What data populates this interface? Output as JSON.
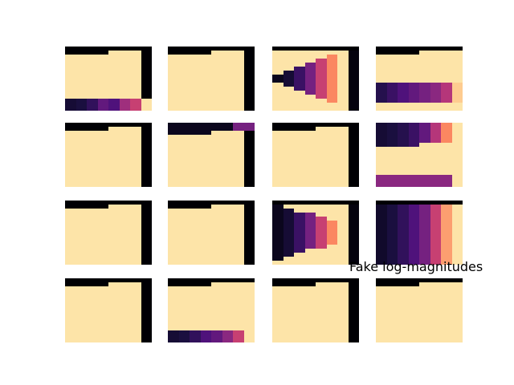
{
  "chart_data": {
    "type": "heatmap",
    "title": "",
    "annotation": "Fake log-magnitudes",
    "grid_rows": 4,
    "grid_cols": 4,
    "colormap": "magma",
    "value_range": [
      0,
      1
    ],
    "panels": [
      {
        "id": "r1c1",
        "pattern": "bottom-band",
        "cols": [
          0.95,
          0.95,
          0.95,
          0.95,
          0.95,
          0.95,
          0.95,
          0.0
        ],
        "band": [
          0.1,
          0.12,
          0.18,
          0.3,
          0.25,
          0.45,
          0.55,
          0.95
        ]
      },
      {
        "id": "r1c2",
        "pattern": "fill",
        "cols": [
          0.95,
          0.95,
          0.95,
          0.95,
          0.95,
          0.95,
          0.95,
          0.0
        ]
      },
      {
        "id": "r1c3",
        "pattern": "wedge",
        "cols": [
          0.05,
          0.1,
          0.2,
          0.35,
          0.55,
          0.75,
          0.95,
          0.02
        ]
      },
      {
        "id": "r1c4",
        "pattern": "mid-band",
        "cols": [
          0.95,
          0.95,
          0.95,
          0.95,
          0.95,
          0.95,
          0.95,
          0.95
        ],
        "band": [
          0.15,
          0.2,
          0.25,
          0.3,
          0.35,
          0.4,
          0.5,
          0.9
        ]
      },
      {
        "id": "r2c1",
        "pattern": "fill",
        "cols": [
          0.95,
          0.95,
          0.95,
          0.95,
          0.95,
          0.95,
          0.95,
          0.0
        ]
      },
      {
        "id": "r2c2",
        "pattern": "top-dark",
        "cols": [
          0.95,
          0.95,
          0.95,
          0.95,
          0.95,
          0.95,
          0.95,
          0.0
        ]
      },
      {
        "id": "r2c3",
        "pattern": "fill",
        "cols": [
          0.95,
          0.95,
          0.95,
          0.95,
          0.95,
          0.95,
          0.95,
          0.0
        ]
      },
      {
        "id": "r2c4",
        "pattern": "top-gradient",
        "cols": [
          0.1,
          0.12,
          0.15,
          0.2,
          0.3,
          0.5,
          0.75,
          0.95
        ]
      },
      {
        "id": "r3c1",
        "pattern": "fill",
        "cols": [
          0.95,
          0.95,
          0.95,
          0.95,
          0.95,
          0.95,
          0.95,
          0.0
        ]
      },
      {
        "id": "r3c2",
        "pattern": "fill",
        "cols": [
          0.95,
          0.95,
          0.95,
          0.95,
          0.95,
          0.95,
          0.95,
          0.0
        ]
      },
      {
        "id": "r3c3",
        "pattern": "x-wedge",
        "cols": [
          0.05,
          0.1,
          0.2,
          0.35,
          0.55,
          0.75,
          0.95,
          0.02
        ]
      },
      {
        "id": "r3c4",
        "pattern": "gradient",
        "cols": [
          0.08,
          0.12,
          0.18,
          0.25,
          0.35,
          0.55,
          0.8,
          0.95
        ]
      },
      {
        "id": "r4c1",
        "pattern": "fill",
        "cols": [
          0.95,
          0.95,
          0.95,
          0.95,
          0.95,
          0.95,
          0.95,
          0.0
        ]
      },
      {
        "id": "r4c2",
        "pattern": "bottom-band",
        "cols": [
          0.95,
          0.95,
          0.95,
          0.95,
          0.95,
          0.95,
          0.95,
          0.95
        ],
        "band": [
          0.1,
          0.12,
          0.18,
          0.25,
          0.3,
          0.4,
          0.55,
          0.95
        ]
      },
      {
        "id": "r4c3",
        "pattern": "fill",
        "cols": [
          0.95,
          0.95,
          0.95,
          0.95,
          0.95,
          0.95,
          0.95,
          0.0
        ]
      },
      {
        "id": "r4c4",
        "pattern": "fill",
        "cols": [
          0.95,
          0.95,
          0.95,
          0.95,
          0.95,
          0.95,
          0.95,
          0.95
        ]
      }
    ]
  }
}
